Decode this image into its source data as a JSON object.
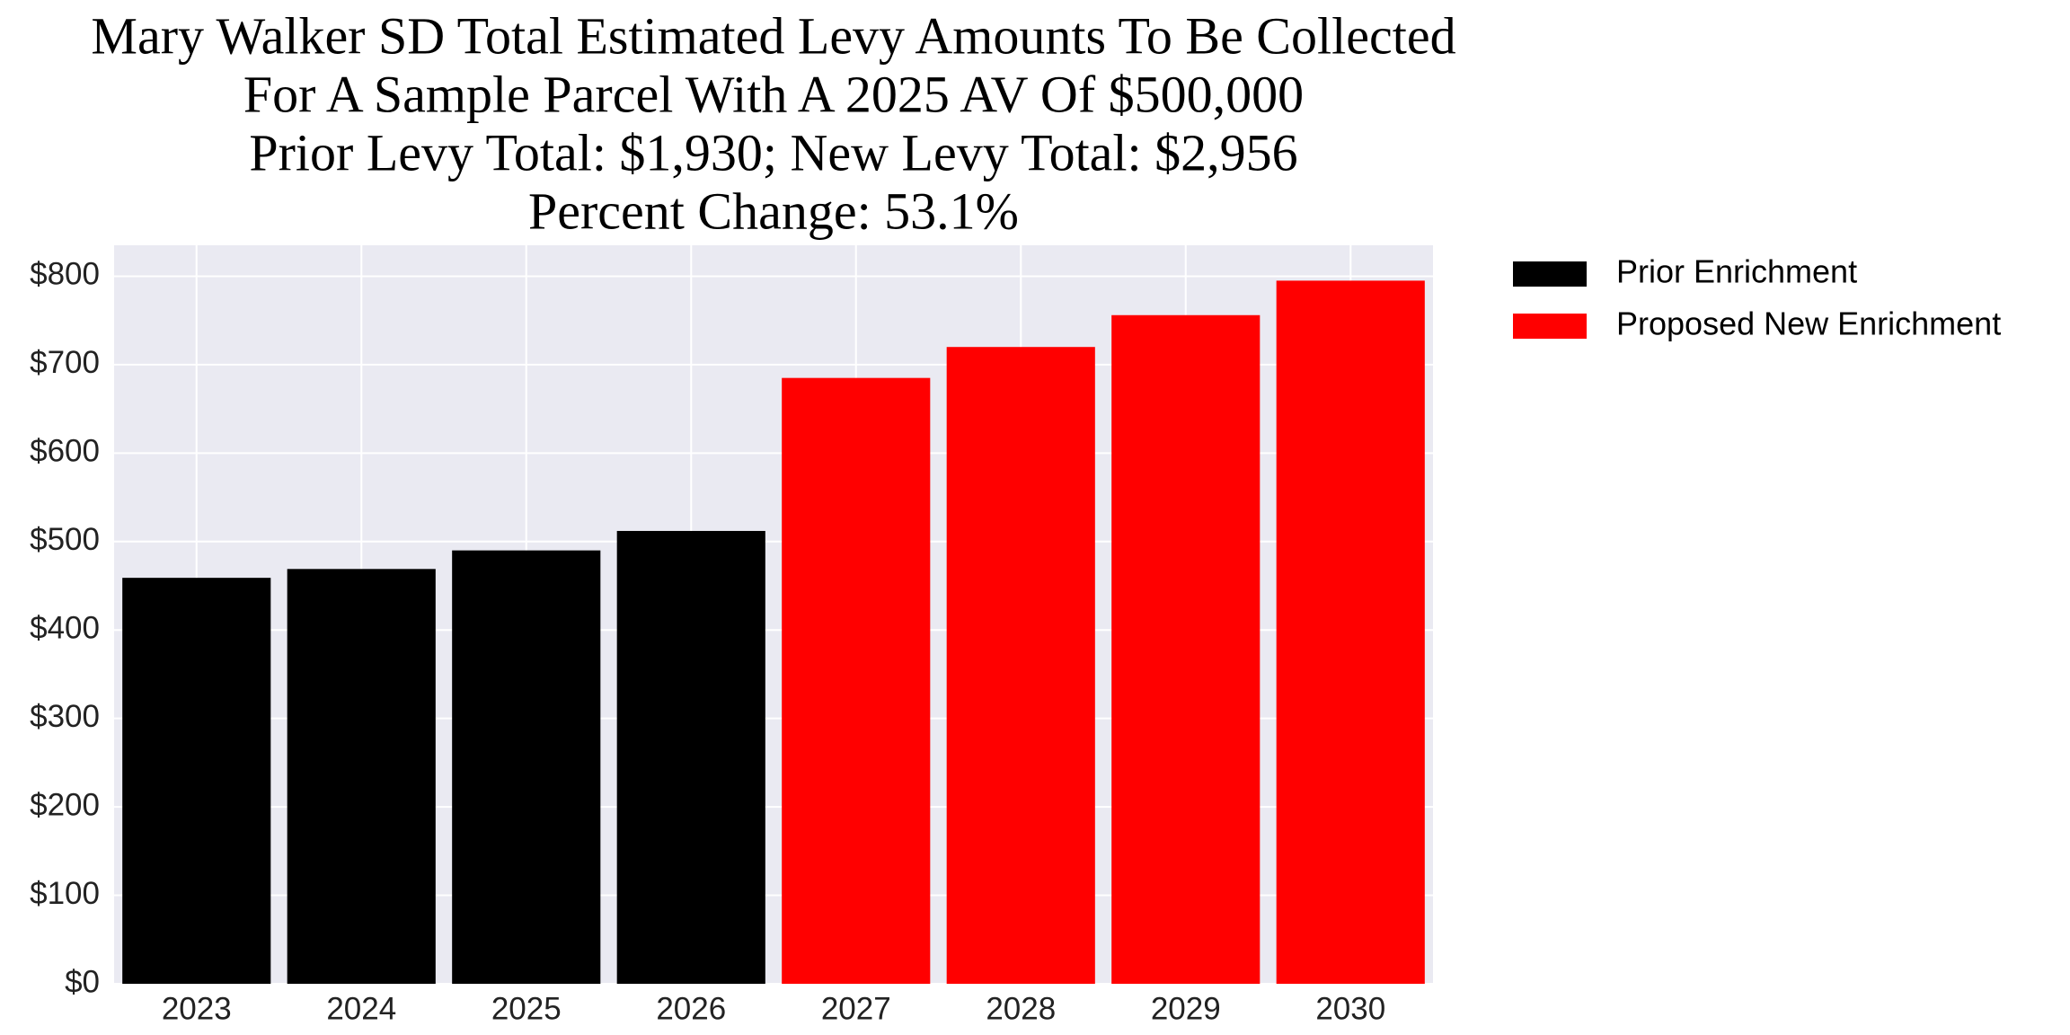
{
  "chart_data": {
    "type": "bar",
    "title": [
      "Mary Walker SD Total Estimated Levy Amounts To Be Collected",
      "For A Sample Parcel With A 2025 AV Of $500,000",
      "Prior Levy Total:  $1,930; New Levy Total: $2,956",
      "Percent Change: 53.1%"
    ],
    "categories": [
      "2023",
      "2024",
      "2025",
      "2026",
      "2027",
      "2028",
      "2029",
      "2030"
    ],
    "series": [
      {
        "name": "Prior Enrichment",
        "color": "#000000",
        "values": [
          459,
          469,
          490,
          512,
          null,
          null,
          null,
          null
        ]
      },
      {
        "name": "Proposed New Enrichment",
        "color": "#ff0000",
        "values": [
          null,
          null,
          null,
          null,
          685,
          720,
          756,
          795
        ]
      }
    ],
    "ylim": [
      0,
      835
    ],
    "yticks": [
      {
        "value": 0,
        "label": "$0"
      },
      {
        "value": 100,
        "label": "$100"
      },
      {
        "value": 200,
        "label": "$200"
      },
      {
        "value": 300,
        "label": "$300"
      },
      {
        "value": 400,
        "label": "$400"
      },
      {
        "value": 500,
        "label": "$500"
      },
      {
        "value": 600,
        "label": "$600"
      },
      {
        "value": 700,
        "label": "$700"
      },
      {
        "value": 800,
        "label": "$800"
      }
    ],
    "grid": true,
    "legend": "outside-upper-right"
  }
}
